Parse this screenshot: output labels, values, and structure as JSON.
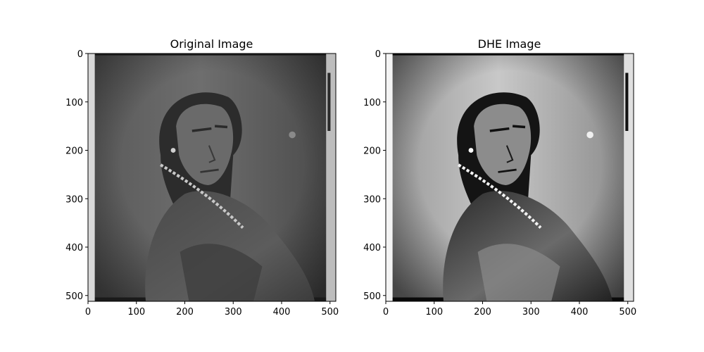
{
  "chart_data": [
    {
      "type": "image",
      "title": "Original Image",
      "xlabel": "",
      "ylabel": "",
      "xlim": [
        0,
        512
      ],
      "ylim": [
        512,
        0
      ],
      "x_ticks": [
        0,
        100,
        200,
        300,
        400,
        500
      ],
      "y_ticks": [
        0,
        100,
        200,
        300,
        400,
        500
      ],
      "x_tick_labels": [
        "0",
        "100",
        "200",
        "300",
        "400",
        "500"
      ],
      "y_tick_labels": [
        "0",
        "100",
        "200",
        "300",
        "400",
        "500"
      ],
      "grid": false,
      "colormap": "gray",
      "tone": "low-contrast grayscale"
    },
    {
      "type": "image",
      "title": "DHE Image",
      "xlabel": "",
      "ylabel": "",
      "xlim": [
        0,
        512
      ],
      "ylim": [
        512,
        0
      ],
      "x_ticks": [
        0,
        100,
        200,
        300,
        400,
        500
      ],
      "y_ticks": [
        0,
        100,
        200,
        300,
        400,
        500
      ],
      "x_tick_labels": [
        "0",
        "100",
        "200",
        "300",
        "400",
        "500"
      ],
      "y_tick_labels": [
        "0",
        "100",
        "200",
        "300",
        "400",
        "500"
      ],
      "grid": false,
      "colormap": "gray",
      "tone": "high-contrast grayscale"
    }
  ],
  "colors": {
    "axis": "#000000",
    "background": "#ffffff"
  }
}
